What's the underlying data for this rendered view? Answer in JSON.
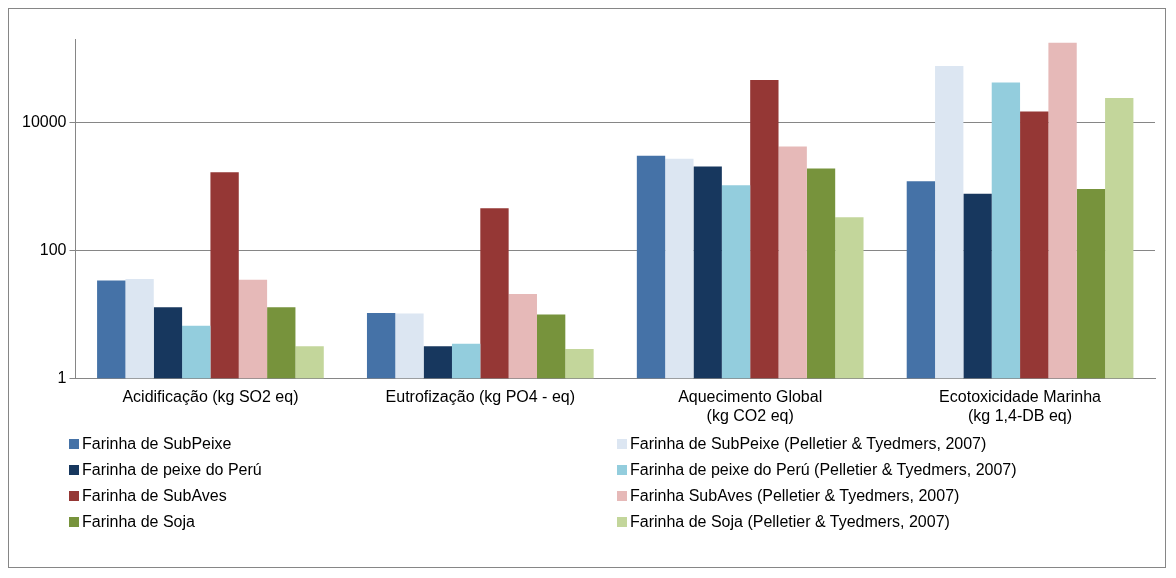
{
  "chart_data": {
    "type": "bar",
    "log": "y",
    "grid": "y",
    "legend": "bottom",
    "categories": [
      "Acidificação (kg SO2 eq)",
      "Eutrofização (kg PO4 - eq)",
      "Aquecimento Global\n(kg CO2 eq)",
      "Ecotoxicidade Marinha\n(kg 1,4-DB eq)"
    ],
    "ylim": [
      1,
      200000
    ],
    "yticks": [
      1,
      100,
      10000
    ],
    "series": [
      {
        "name": "Farinha de SubPeixe",
        "color": "#4572a7",
        "values": [
          34,
          10.6,
          3000,
          1200
        ]
      },
      {
        "name": "Farinha de SubPeixe (Pelletier & Tyedmers, 2007)",
        "color": "#dce6f2",
        "values": [
          36,
          10.4,
          2700,
          76000
        ]
      },
      {
        "name": "Farinha de peixe do Perú",
        "color": "#17375e",
        "values": [
          13,
          3.2,
          2050,
          770
        ]
      },
      {
        "name": "Farinha de peixe do Perú (Pelletier & Tyedmers, 2007)",
        "color": "#93cddd",
        "values": [
          6.7,
          3.5,
          1040,
          42000
        ]
      },
      {
        "name": "Farinha de SubAves",
        "color": "#953735",
        "values": [
          1660,
          455,
          46000,
          14800
        ]
      },
      {
        "name": "Farinha SubAves (Pelletier & Tyedmers, 2007)",
        "color": "#e6b9b8",
        "values": [
          35,
          21,
          4200,
          175000
        ]
      },
      {
        "name": "Farinha de Soja",
        "color": "#77933c",
        "values": [
          13,
          10,
          1900,
          910
        ]
      },
      {
        "name": "Farinha de Soja (Pelletier & Tyedmers, 2007)",
        "color": "#c3d69b",
        "values": [
          3.2,
          2.9,
          330,
          24000
        ]
      }
    ]
  }
}
